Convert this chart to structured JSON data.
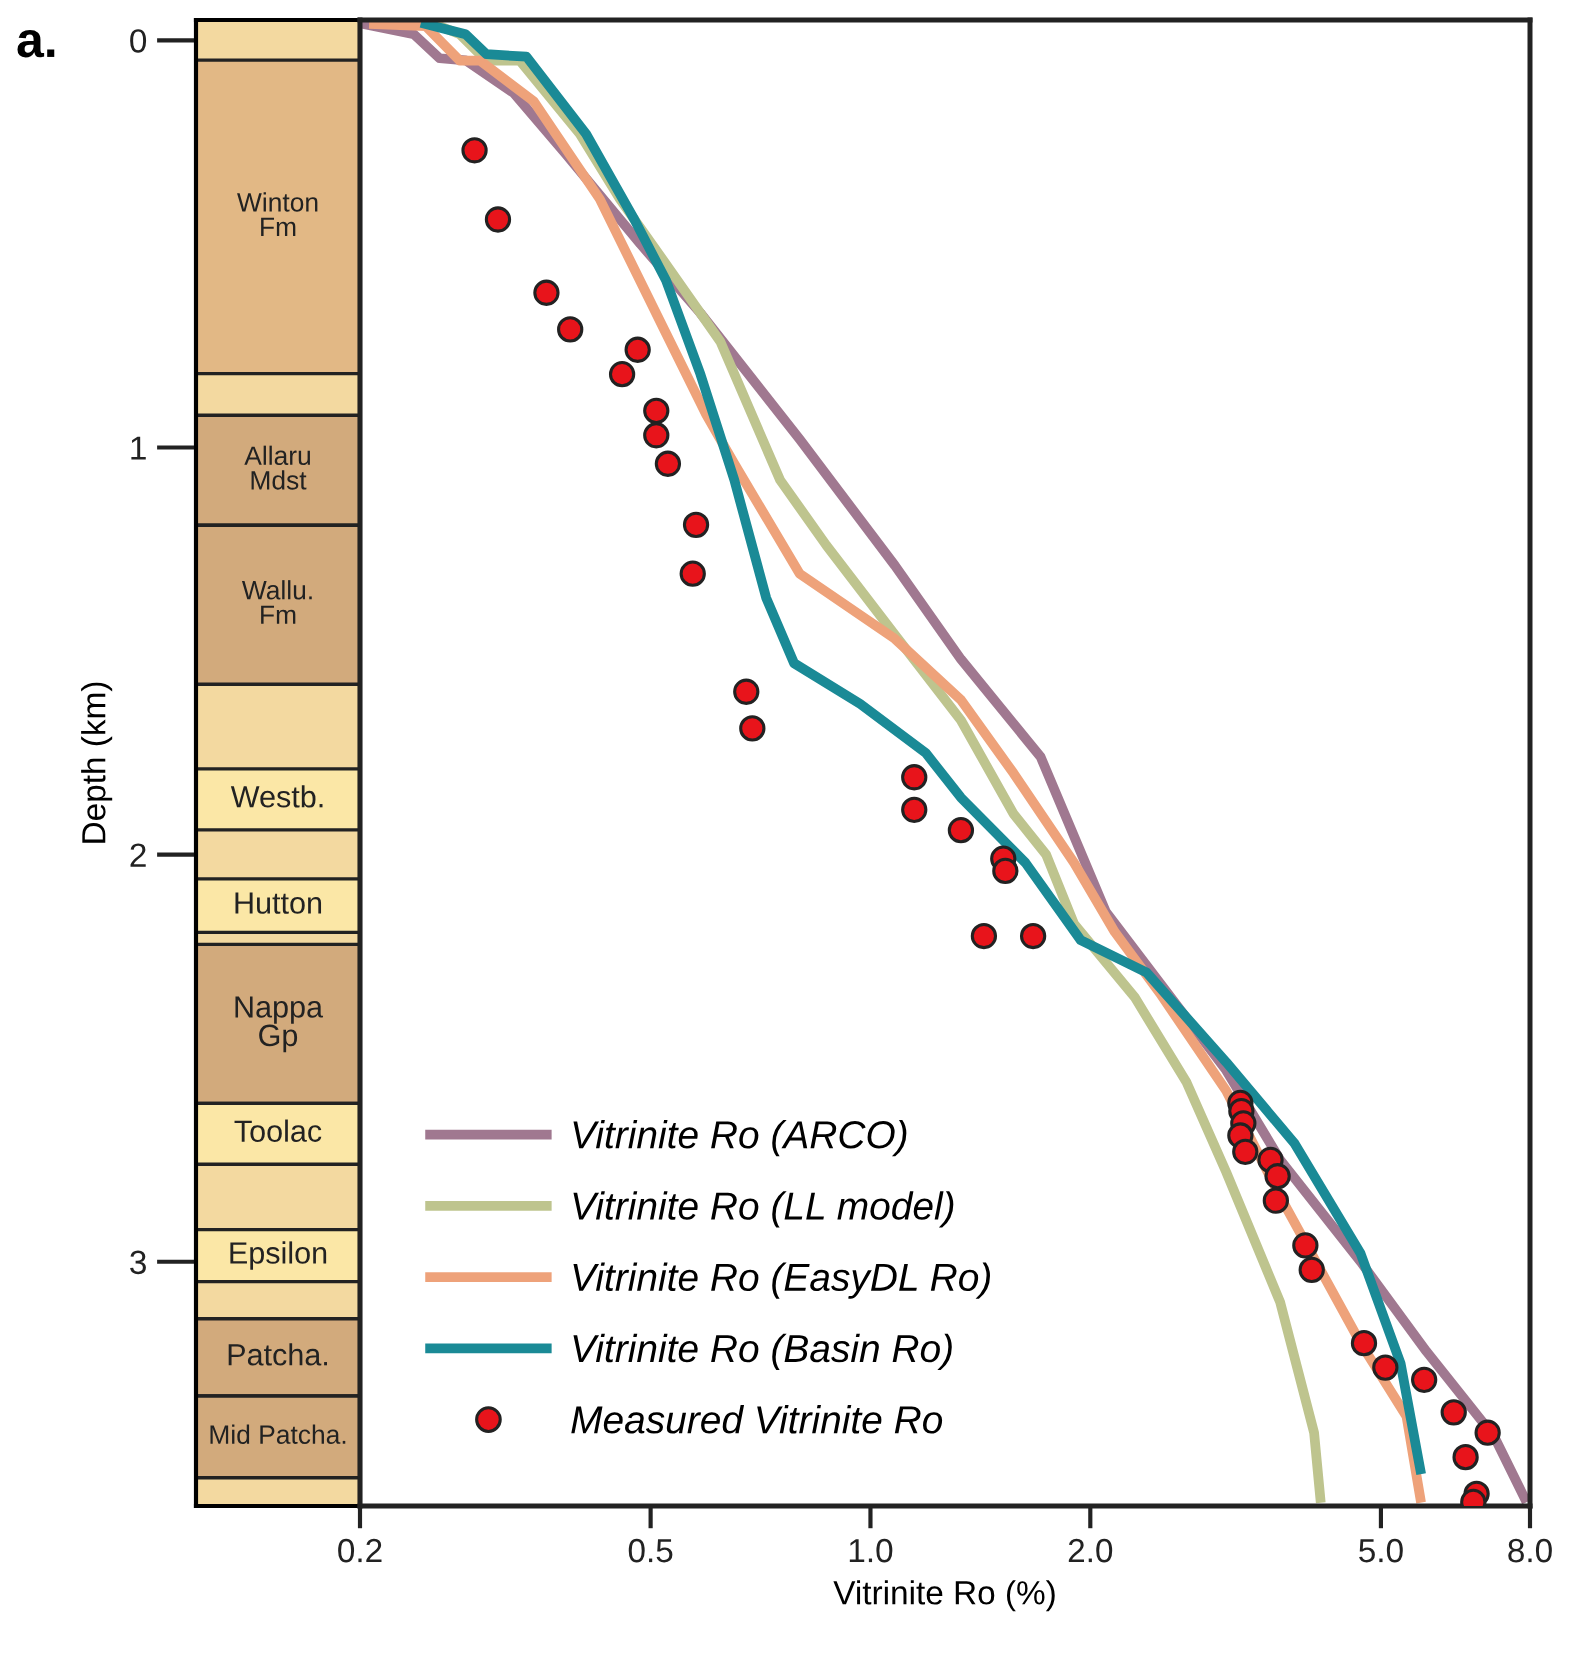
{
  "chart_data": {
    "type": "line",
    "title": "a.",
    "xlabel": "Vitrinite Ro (%)",
    "ylabel": "Depth (km)",
    "log": "x",
    "legend": "bottom left",
    "xlim": [
      0.2,
      8.0
    ],
    "xticks": [
      {
        "value": 0.2,
        "label": "0.2"
      },
      {
        "value": 0.5,
        "label": "0.5"
      },
      {
        "value": 1.0,
        "label": "1.0"
      },
      {
        "value": 2.0,
        "label": "2.0"
      },
      {
        "value": 5.0,
        "label": "5.0"
      },
      {
        "value": 8.0,
        "label": "8.0"
      }
    ],
    "ylim": [
      3.6,
      -0.05
    ],
    "yticks": [
      0,
      1,
      2,
      3
    ],
    "annotations": [
      "Winton\nFm",
      "Allaru\nMdst",
      "Wallu.\nFm",
      "Westb.",
      "Hutton",
      "Nappa\nGp",
      "Toolac",
      "Epsilon",
      "Patcha.",
      "Mid Patcha."
    ],
    "series": [
      {
        "name": "Vitrinite Ro (ARCO)",
        "type": "line",
        "line_style": "solid",
        "color": "#a07890",
        "x": [
          0.2025,
          0.237,
          0.257,
          0.279,
          0.325,
          0.383,
          0.484,
          0.585,
          0.8,
          1.08,
          1.33,
          1.71,
          2.1,
          3.07,
          3.64,
          4.69,
          5.77,
          7.15,
          7.86
        ],
        "values": [
          -0.04,
          -0.015,
          0.044,
          0.049,
          0.13,
          0.28,
          0.5,
          0.67,
          0.98,
          1.29,
          1.52,
          1.76,
          2.14,
          2.53,
          2.75,
          3.0,
          3.22,
          3.43,
          3.58
        ]
      },
      {
        "name": "Vitrinite Ro (LL model)",
        "type": "line",
        "line_style": "solid",
        "color": "#bec48e",
        "x": [
          0.253,
          0.274,
          0.298,
          0.331,
          0.4,
          0.454,
          0.525,
          0.623,
          0.752,
          0.87,
          1.08,
          1.33,
          1.57,
          1.74,
          1.9,
          2.3,
          2.71,
          3.07,
          3.64,
          4.05,
          4.13
        ],
        "values": [
          -0.04,
          -0.015,
          0.05,
          0.05,
          0.23,
          0.39,
          0.55,
          0.74,
          1.08,
          1.24,
          1.46,
          1.67,
          1.9,
          2.0,
          2.17,
          2.35,
          2.56,
          2.78,
          3.1,
          3.42,
          3.58
        ]
      },
      {
        "name": "Vitrinite Ro (EasyDL Ro)",
        "type": "line",
        "line_style": "solid",
        "color": "#eea27a",
        "x": [
          0.209,
          0.246,
          0.274,
          0.292,
          0.346,
          0.426,
          0.525,
          0.596,
          0.651,
          0.8,
          1.08,
          1.33,
          1.57,
          1.9,
          2.16,
          2.49,
          3.07,
          3.64,
          4.69,
          5.42,
          5.66
        ],
        "values": [
          -0.04,
          -0.035,
          0.05,
          0.05,
          0.15,
          0.39,
          0.72,
          0.92,
          1.04,
          1.31,
          1.47,
          1.62,
          1.8,
          2.02,
          2.19,
          2.34,
          2.58,
          2.84,
          3.2,
          3.38,
          3.58
        ]
      },
      {
        "name": "Vitrinite Ro (Basin Ro)",
        "type": "line",
        "line_style": "solid",
        "color": "#1a8a96",
        "x": [
          0.246,
          0.279,
          0.298,
          0.338,
          0.408,
          0.475,
          0.525,
          0.585,
          0.651,
          0.72,
          0.786,
          0.968,
          1.19,
          1.33,
          1.63,
          1.94,
          2.39,
          3.07,
          3.81,
          4.69,
          5.32,
          5.66
        ],
        "values": [
          -0.04,
          -0.015,
          0.034,
          0.04,
          0.23,
          0.44,
          0.59,
          0.82,
          1.08,
          1.37,
          1.53,
          1.63,
          1.75,
          1.86,
          2.02,
          2.21,
          2.29,
          2.51,
          2.71,
          2.98,
          3.25,
          3.51
        ]
      },
      {
        "name": "Measured Vitrinite Ro",
        "type": "scatter",
        "marker": "circle",
        "color": "#e8141b",
        "x": [
          0.287,
          0.309,
          0.36,
          0.388,
          0.48,
          0.457,
          0.509,
          0.509,
          0.528,
          0.577,
          0.571,
          0.676,
          0.689,
          1.148,
          1.148,
          1.33,
          1.52,
          1.53,
          1.43,
          1.67,
          3.21,
          3.22,
          3.24,
          3.21,
          3.26,
          3.53,
          3.61,
          3.59,
          3.94,
          4.02,
          4.74,
          5.07,
          5.73,
          6.29,
          7.0,
          6.53,
          6.76,
          6.69
        ],
        "values": [
          0.27,
          0.44,
          0.62,
          0.71,
          0.76,
          0.82,
          0.91,
          0.97,
          1.04,
          1.19,
          1.31,
          1.6,
          1.69,
          1.81,
          1.89,
          1.94,
          2.01,
          2.04,
          2.2,
          2.2,
          2.61,
          2.63,
          2.66,
          2.69,
          2.73,
          2.75,
          2.79,
          2.85,
          2.96,
          3.02,
          3.2,
          3.26,
          3.29,
          3.37,
          3.42,
          3.48,
          3.57,
          3.59
        ]
      }
    ]
  }
}
